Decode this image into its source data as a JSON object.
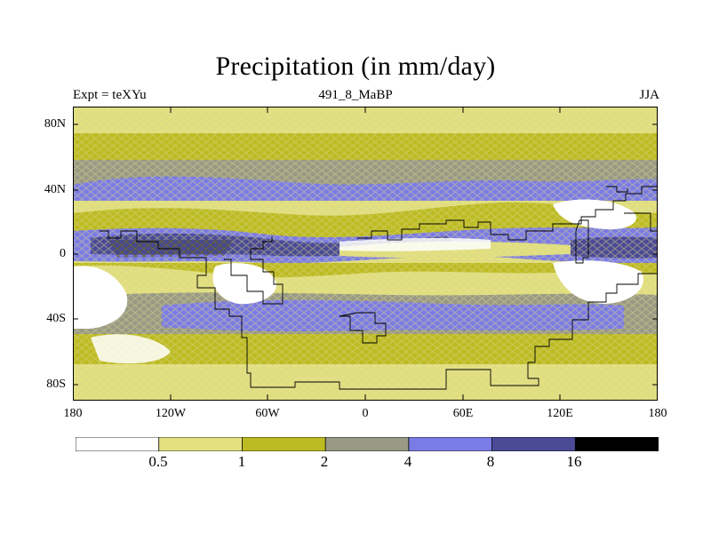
{
  "title": "Precipitation (in mm/day)",
  "subtitle_left": "Expt = teXYu",
  "subtitle_center": "491_8_MaBP",
  "subtitle_right": "JJA",
  "y_ticks": [
    "80N",
    "40N",
    "0",
    "40S",
    "80S"
  ],
  "x_ticks": [
    "180",
    "120W",
    "60W",
    "0",
    "60E",
    "120E",
    "180"
  ],
  "colorbar": {
    "labels": [
      "0.5",
      "1",
      "2",
      "4",
      "8",
      "16"
    ],
    "colors": [
      "#ffffff",
      "#e2e081",
      "#bdbb22",
      "#999986",
      "#7b7be6",
      "#4a4a96",
      "#000000"
    ]
  },
  "colors": {
    "hatch": "#d8d68a",
    "coast": "#000000",
    "frame": "#000000"
  }
}
